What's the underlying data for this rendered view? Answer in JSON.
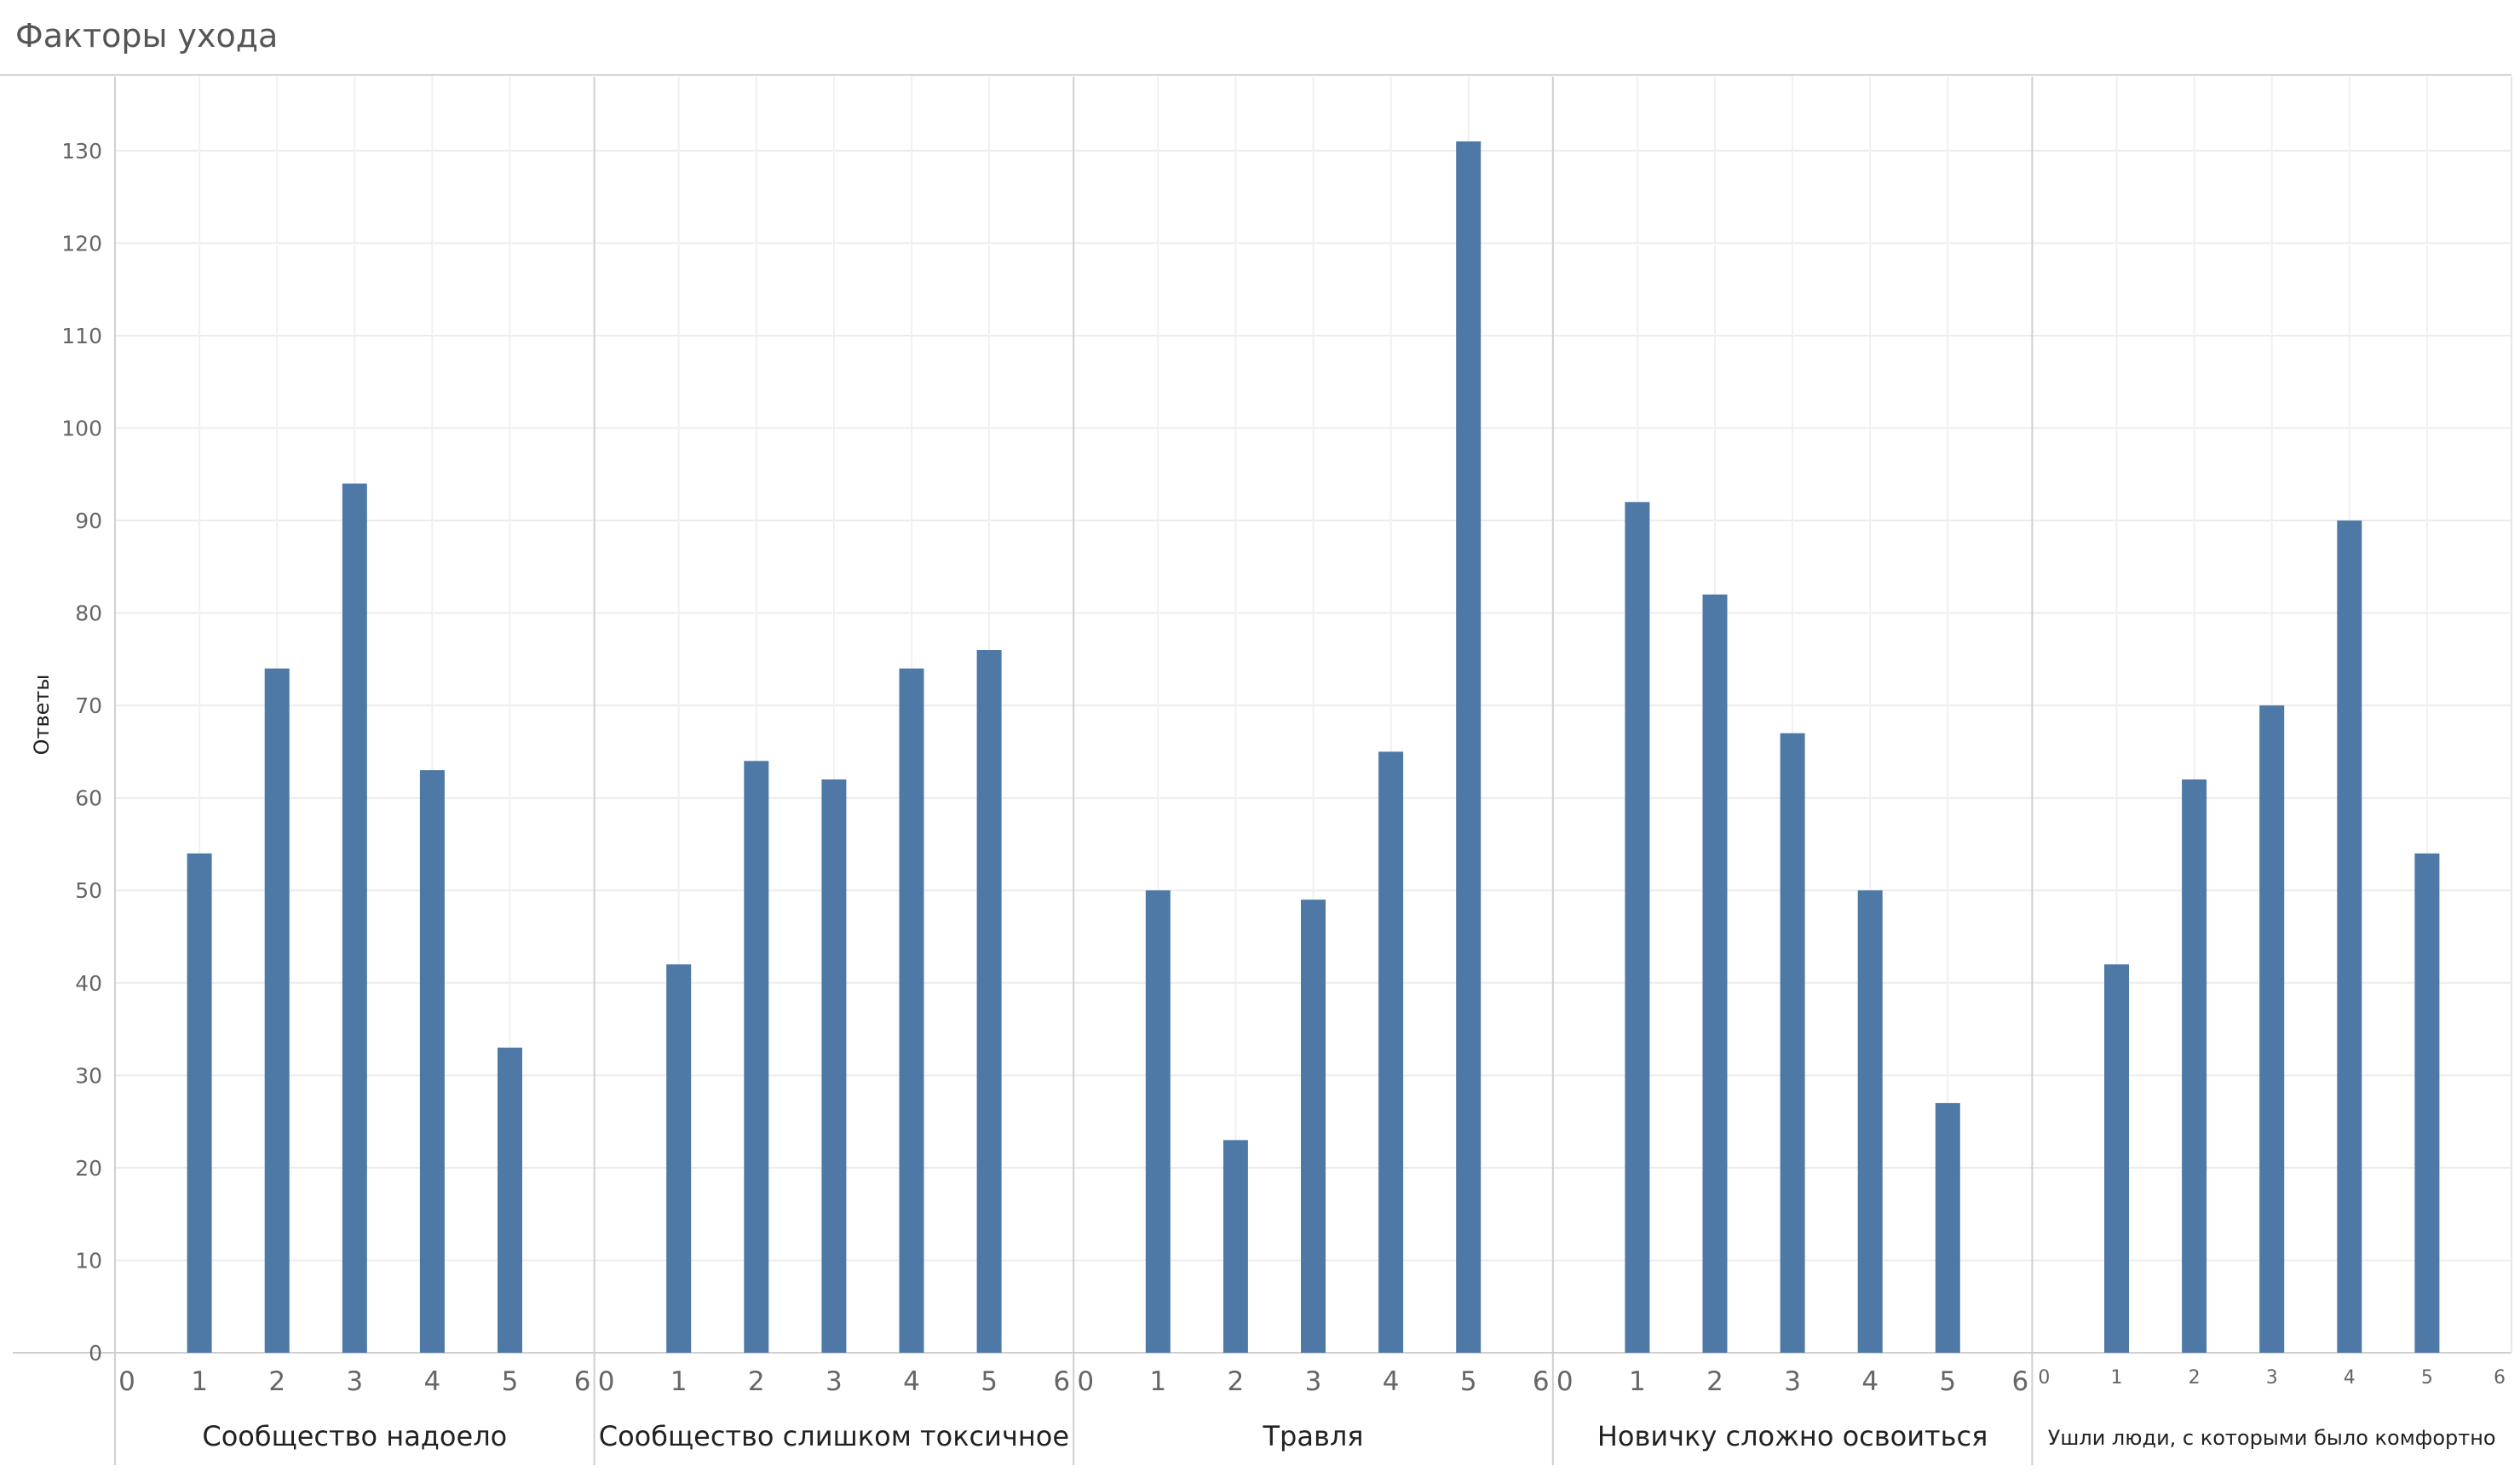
{
  "chart_data": {
    "type": "bar",
    "title": "Факторы ухода",
    "ylabel": "Ответы",
    "xlabel": "",
    "ylim": [
      0,
      138
    ],
    "y_ticks": [
      0,
      10,
      20,
      30,
      40,
      50,
      60,
      70,
      80,
      90,
      100,
      110,
      120,
      130
    ],
    "x_ticks": [
      0,
      1,
      2,
      3,
      4,
      5,
      6
    ],
    "xlim": [
      0,
      6
    ],
    "grid": true,
    "bar_color": "#4e79a7",
    "panels": [
      {
        "name": "Сообщество надоело",
        "x": [
          1,
          2,
          3,
          4,
          5
        ],
        "values": [
          54,
          74,
          94,
          63,
          33
        ]
      },
      {
        "name": "Сообщество слишком токсичное",
        "x": [
          1,
          2,
          3,
          4,
          5
        ],
        "values": [
          42,
          64,
          62,
          74,
          76
        ]
      },
      {
        "name": "Травля",
        "x": [
          1,
          2,
          3,
          4,
          5
        ],
        "values": [
          50,
          23,
          49,
          65,
          131
        ]
      },
      {
        "name": "Новичку сложно освоиться",
        "x": [
          1,
          2,
          3,
          4,
          5
        ],
        "values": [
          92,
          82,
          67,
          50,
          27
        ]
      },
      {
        "name": "Ушли люди, с которыми было комфортно",
        "x": [
          1,
          2,
          3,
          4,
          5
        ],
        "values": [
          42,
          62,
          70,
          90,
          54
        ]
      }
    ]
  }
}
